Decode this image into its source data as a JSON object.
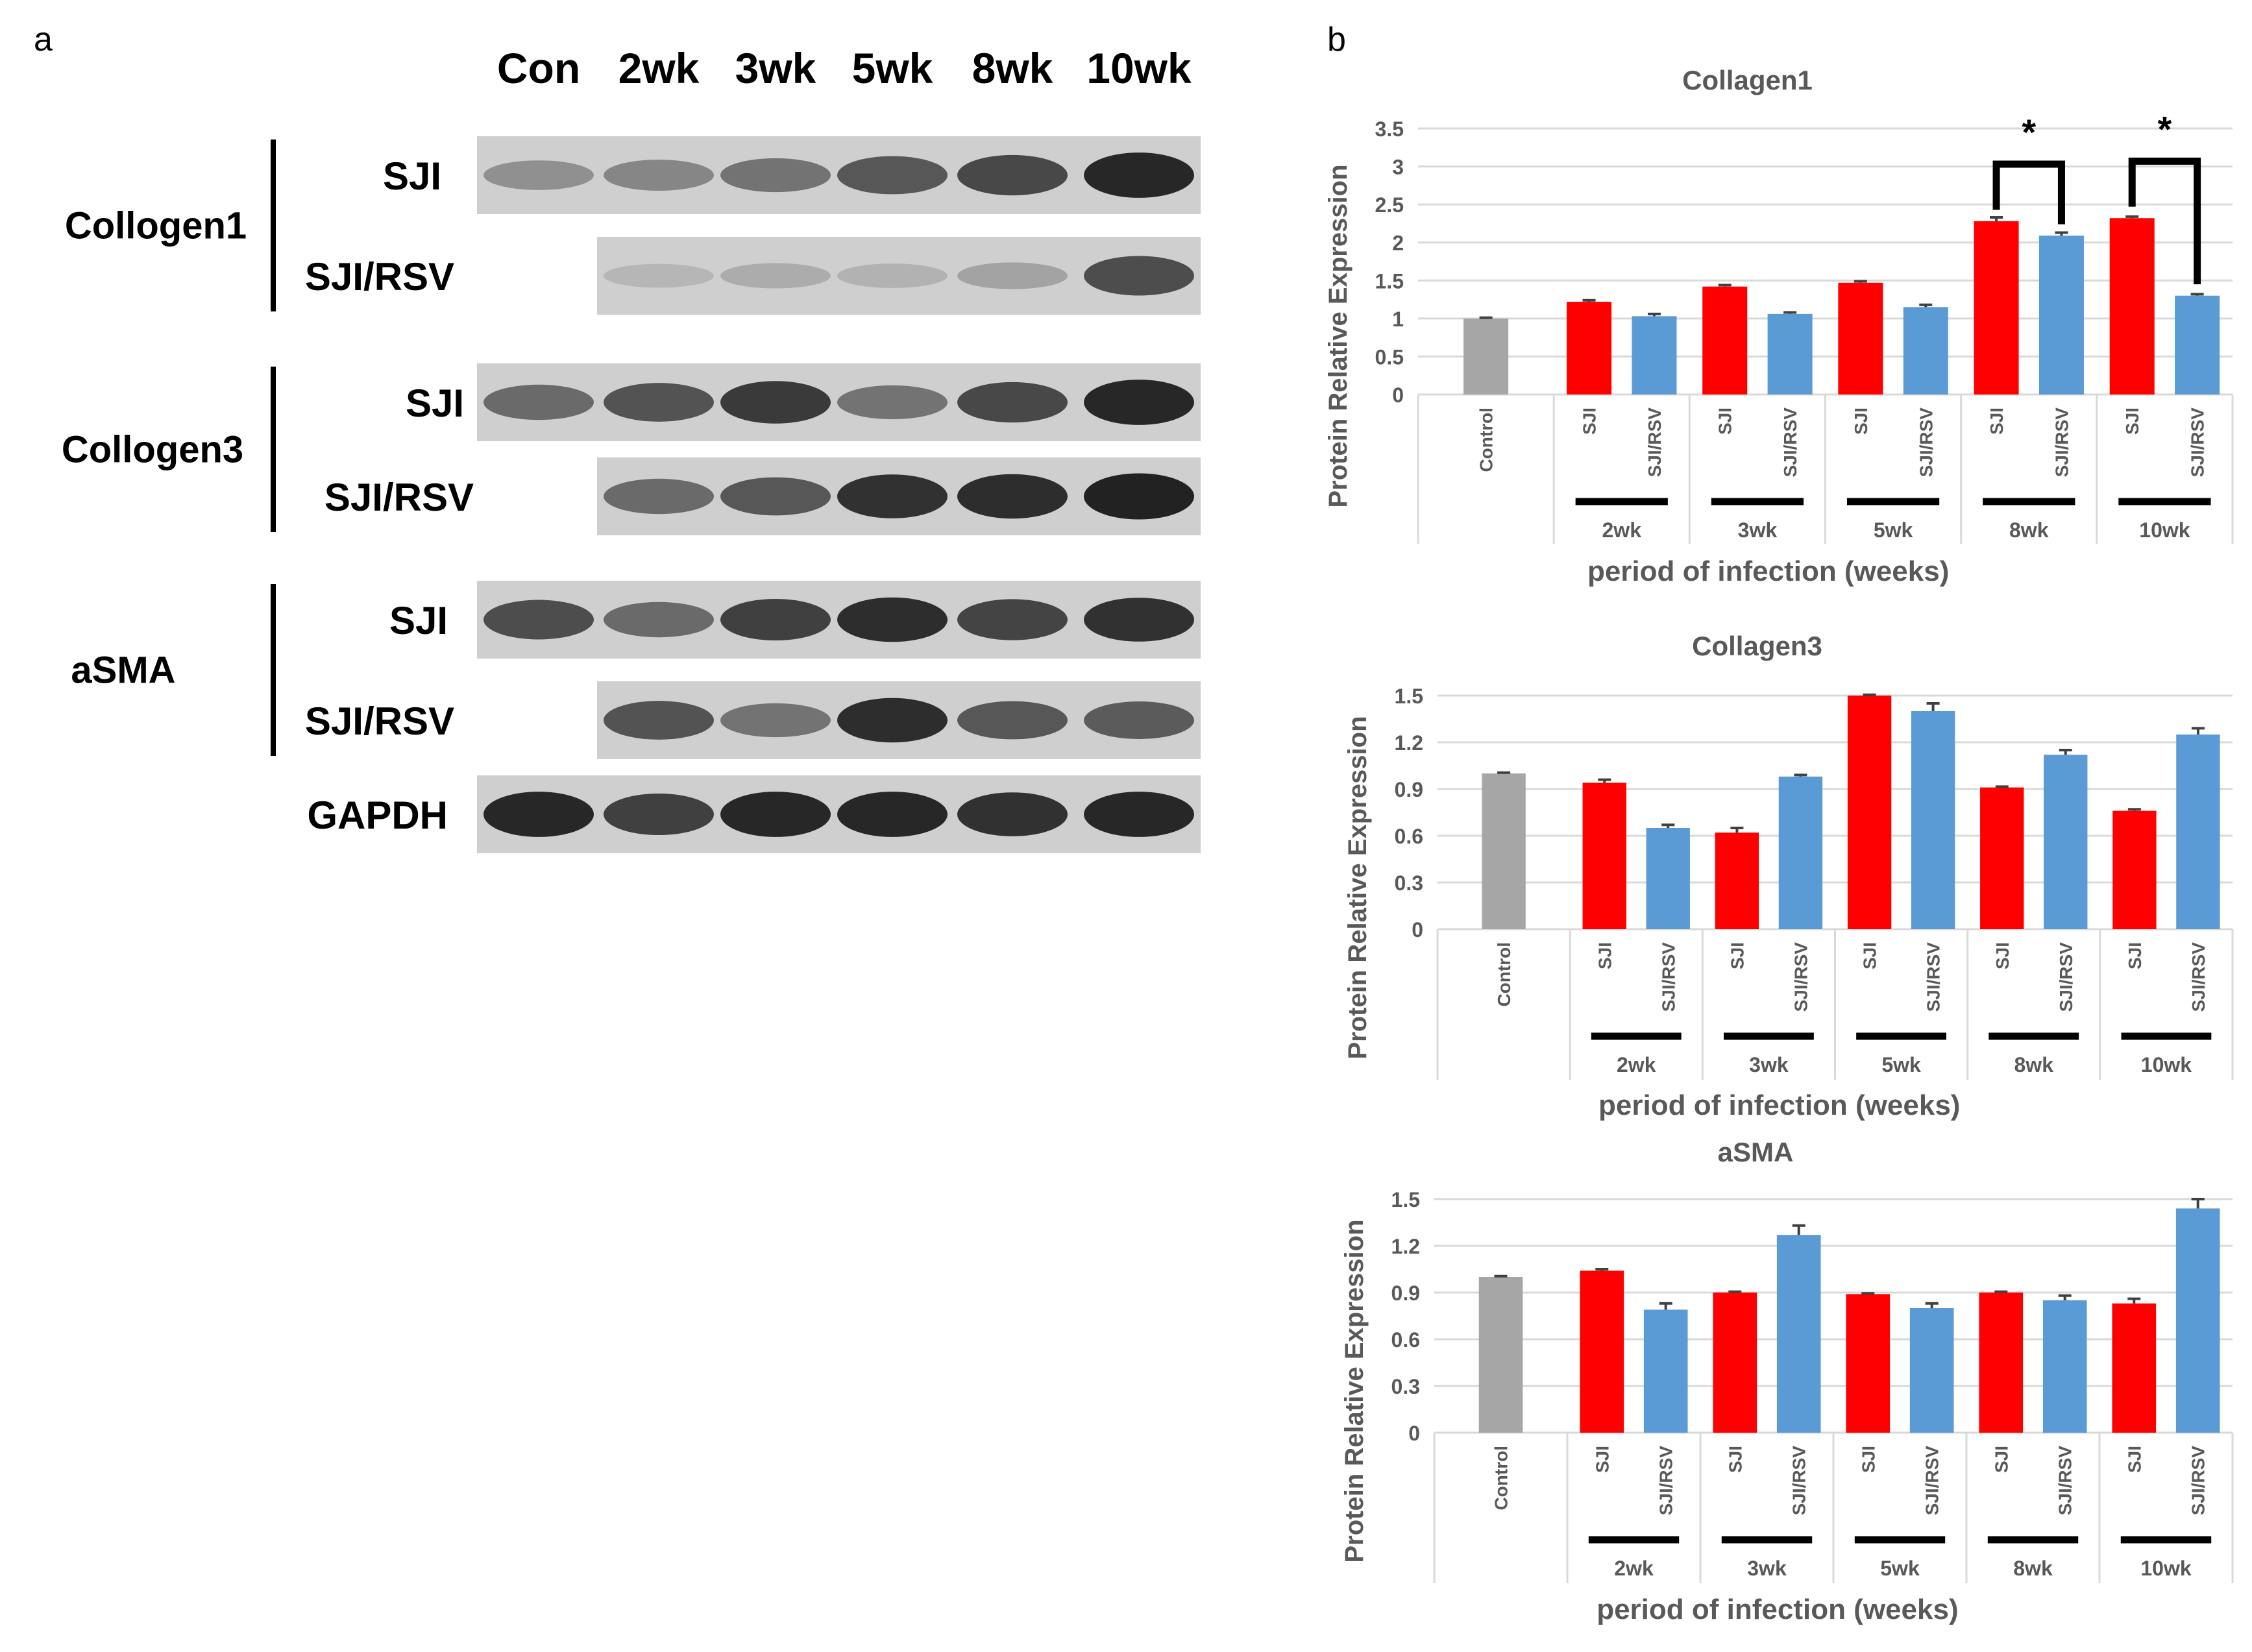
{
  "panel_a": {
    "label": "a",
    "lane_labels": [
      "Con",
      "2wk",
      "3wk",
      "5wk",
      "8wk",
      "10wk"
    ],
    "groups": [
      {
        "name": "Collogen1",
        "rows": [
          {
            "label": "SJI",
            "lanes": [
              0,
              1,
              2,
              3,
              4,
              5
            ],
            "intensity": [
              0.4,
              0.45,
              0.55,
              0.7,
              0.78,
              0.95
            ]
          },
          {
            "label": "SJI/RSV",
            "lanes": [
              1,
              2,
              3,
              4,
              5
            ],
            "intensity": [
              0.2,
              0.25,
              0.22,
              0.3,
              0.75
            ]
          }
        ]
      },
      {
        "name": "Collogen3",
        "rows": [
          {
            "label": "SJI",
            "lanes": [
              0,
              1,
              2,
              3,
              4,
              5
            ],
            "intensity": [
              0.6,
              0.72,
              0.85,
              0.55,
              0.78,
              0.95
            ]
          },
          {
            "label": "SJI/RSV",
            "lanes": [
              1,
              2,
              3,
              4,
              5
            ],
            "intensity": [
              0.6,
              0.7,
              0.9,
              0.92,
              0.98
            ]
          }
        ]
      },
      {
        "name": "aSMA",
        "rows": [
          {
            "label": "SJI",
            "lanes": [
              0,
              1,
              2,
              3,
              4,
              5
            ],
            "intensity": [
              0.75,
              0.6,
              0.82,
              0.92,
              0.8,
              0.9
            ]
          },
          {
            "label": "SJI/RSV",
            "lanes": [
              1,
              2,
              3,
              4,
              5
            ],
            "intensity": [
              0.72,
              0.55,
              0.92,
              0.7,
              0.68
            ]
          }
        ]
      },
      {
        "name": "",
        "rows": [
          {
            "label": "GAPDH",
            "lanes": [
              0,
              1,
              2,
              3,
              4,
              5
            ],
            "intensity": [
              0.95,
              0.82,
              0.95,
              0.95,
              0.9,
              0.95
            ]
          }
        ]
      }
    ]
  },
  "panel_b": {
    "label": "b"
  },
  "colors": {
    "control": "#a6a6a6",
    "sji": "#ff0000",
    "rsv": "#5b9bd5",
    "axis_text": "#595959",
    "grid": "#d9d9d9"
  },
  "chart_data": [
    {
      "type": "bar",
      "title": "Collagen1",
      "xlabel": "period of infection (weeks)",
      "ylabel": "Protein Relative Expression",
      "ylim": [
        0,
        3.5
      ],
      "yticks": [
        "0",
        "0.5",
        "1",
        "1.5",
        "2",
        "2.5",
        "3",
        "3.5"
      ],
      "ytick_values": [
        0,
        0.5,
        1,
        1.5,
        2,
        2.5,
        3,
        3.5
      ],
      "control": {
        "label": "Control",
        "value": 1.0,
        "error": 0.01
      },
      "groups": [
        "2wk",
        "3wk",
        "5wk",
        "8wk",
        "10wk"
      ],
      "series": [
        {
          "name": "SJI",
          "values": [
            1.22,
            1.42,
            1.47,
            2.28,
            2.32
          ],
          "errors": [
            0.02,
            0.02,
            0.02,
            0.05,
            0.02
          ]
        },
        {
          "name": "SJI/RSV",
          "values": [
            1.03,
            1.06,
            1.15,
            2.09,
            1.3
          ],
          "errors": [
            0.03,
            0.02,
            0.03,
            0.04,
            0.02
          ]
        }
      ],
      "annotations": [
        {
          "text": "*",
          "group": "8wk"
        },
        {
          "text": "*",
          "group": "10wk"
        }
      ]
    },
    {
      "type": "bar",
      "title": "Collagen3",
      "xlabel": "period of infection (weeks)",
      "ylabel": "Protein Relative Expression",
      "ylim": [
        0,
        1.5
      ],
      "yticks": [
        "0",
        "0.3",
        "0.6",
        "0.9",
        "1.2",
        "1.5"
      ],
      "ytick_values": [
        0,
        0.3,
        0.6,
        0.9,
        1.2,
        1.5
      ],
      "control": {
        "label": "Control",
        "value": 1.0,
        "error": 0.005
      },
      "groups": [
        "2wk",
        "3wk",
        "5wk",
        "8wk",
        "10wk"
      ],
      "series": [
        {
          "name": "SJI",
          "values": [
            0.94,
            0.62,
            1.5,
            0.91,
            0.76
          ],
          "errors": [
            0.02,
            0.03,
            0.005,
            0.005,
            0.01
          ]
        },
        {
          "name": "SJI/RSV",
          "values": [
            0.65,
            0.98,
            1.4,
            1.12,
            1.25
          ],
          "errors": [
            0.02,
            0.01,
            0.05,
            0.03,
            0.04
          ]
        }
      ],
      "annotations": []
    },
    {
      "type": "bar",
      "title": "aSMA",
      "xlabel": "period of infection (weeks)",
      "ylabel": "Protein Relative Expression",
      "ylim": [
        0,
        1.5
      ],
      "yticks": [
        "0",
        "0.3",
        "0.6",
        "0.9",
        "1.2",
        "1.5"
      ],
      "ytick_values": [
        0,
        0.3,
        0.6,
        0.9,
        1.2,
        1.5
      ],
      "control": {
        "label": "Control",
        "value": 1.0,
        "error": 0.005
      },
      "groups": [
        "2wk",
        "3wk",
        "5wk",
        "8wk",
        "10wk"
      ],
      "series": [
        {
          "name": "SJI",
          "values": [
            1.04,
            0.9,
            0.89,
            0.9,
            0.83
          ],
          "errors": [
            0.01,
            0.005,
            0.005,
            0.005,
            0.03
          ]
        },
        {
          "name": "SJI/RSV",
          "values": [
            0.79,
            1.27,
            0.8,
            0.85,
            1.44
          ],
          "errors": [
            0.04,
            0.06,
            0.03,
            0.03,
            0.06
          ]
        }
      ],
      "annotations": []
    }
  ]
}
